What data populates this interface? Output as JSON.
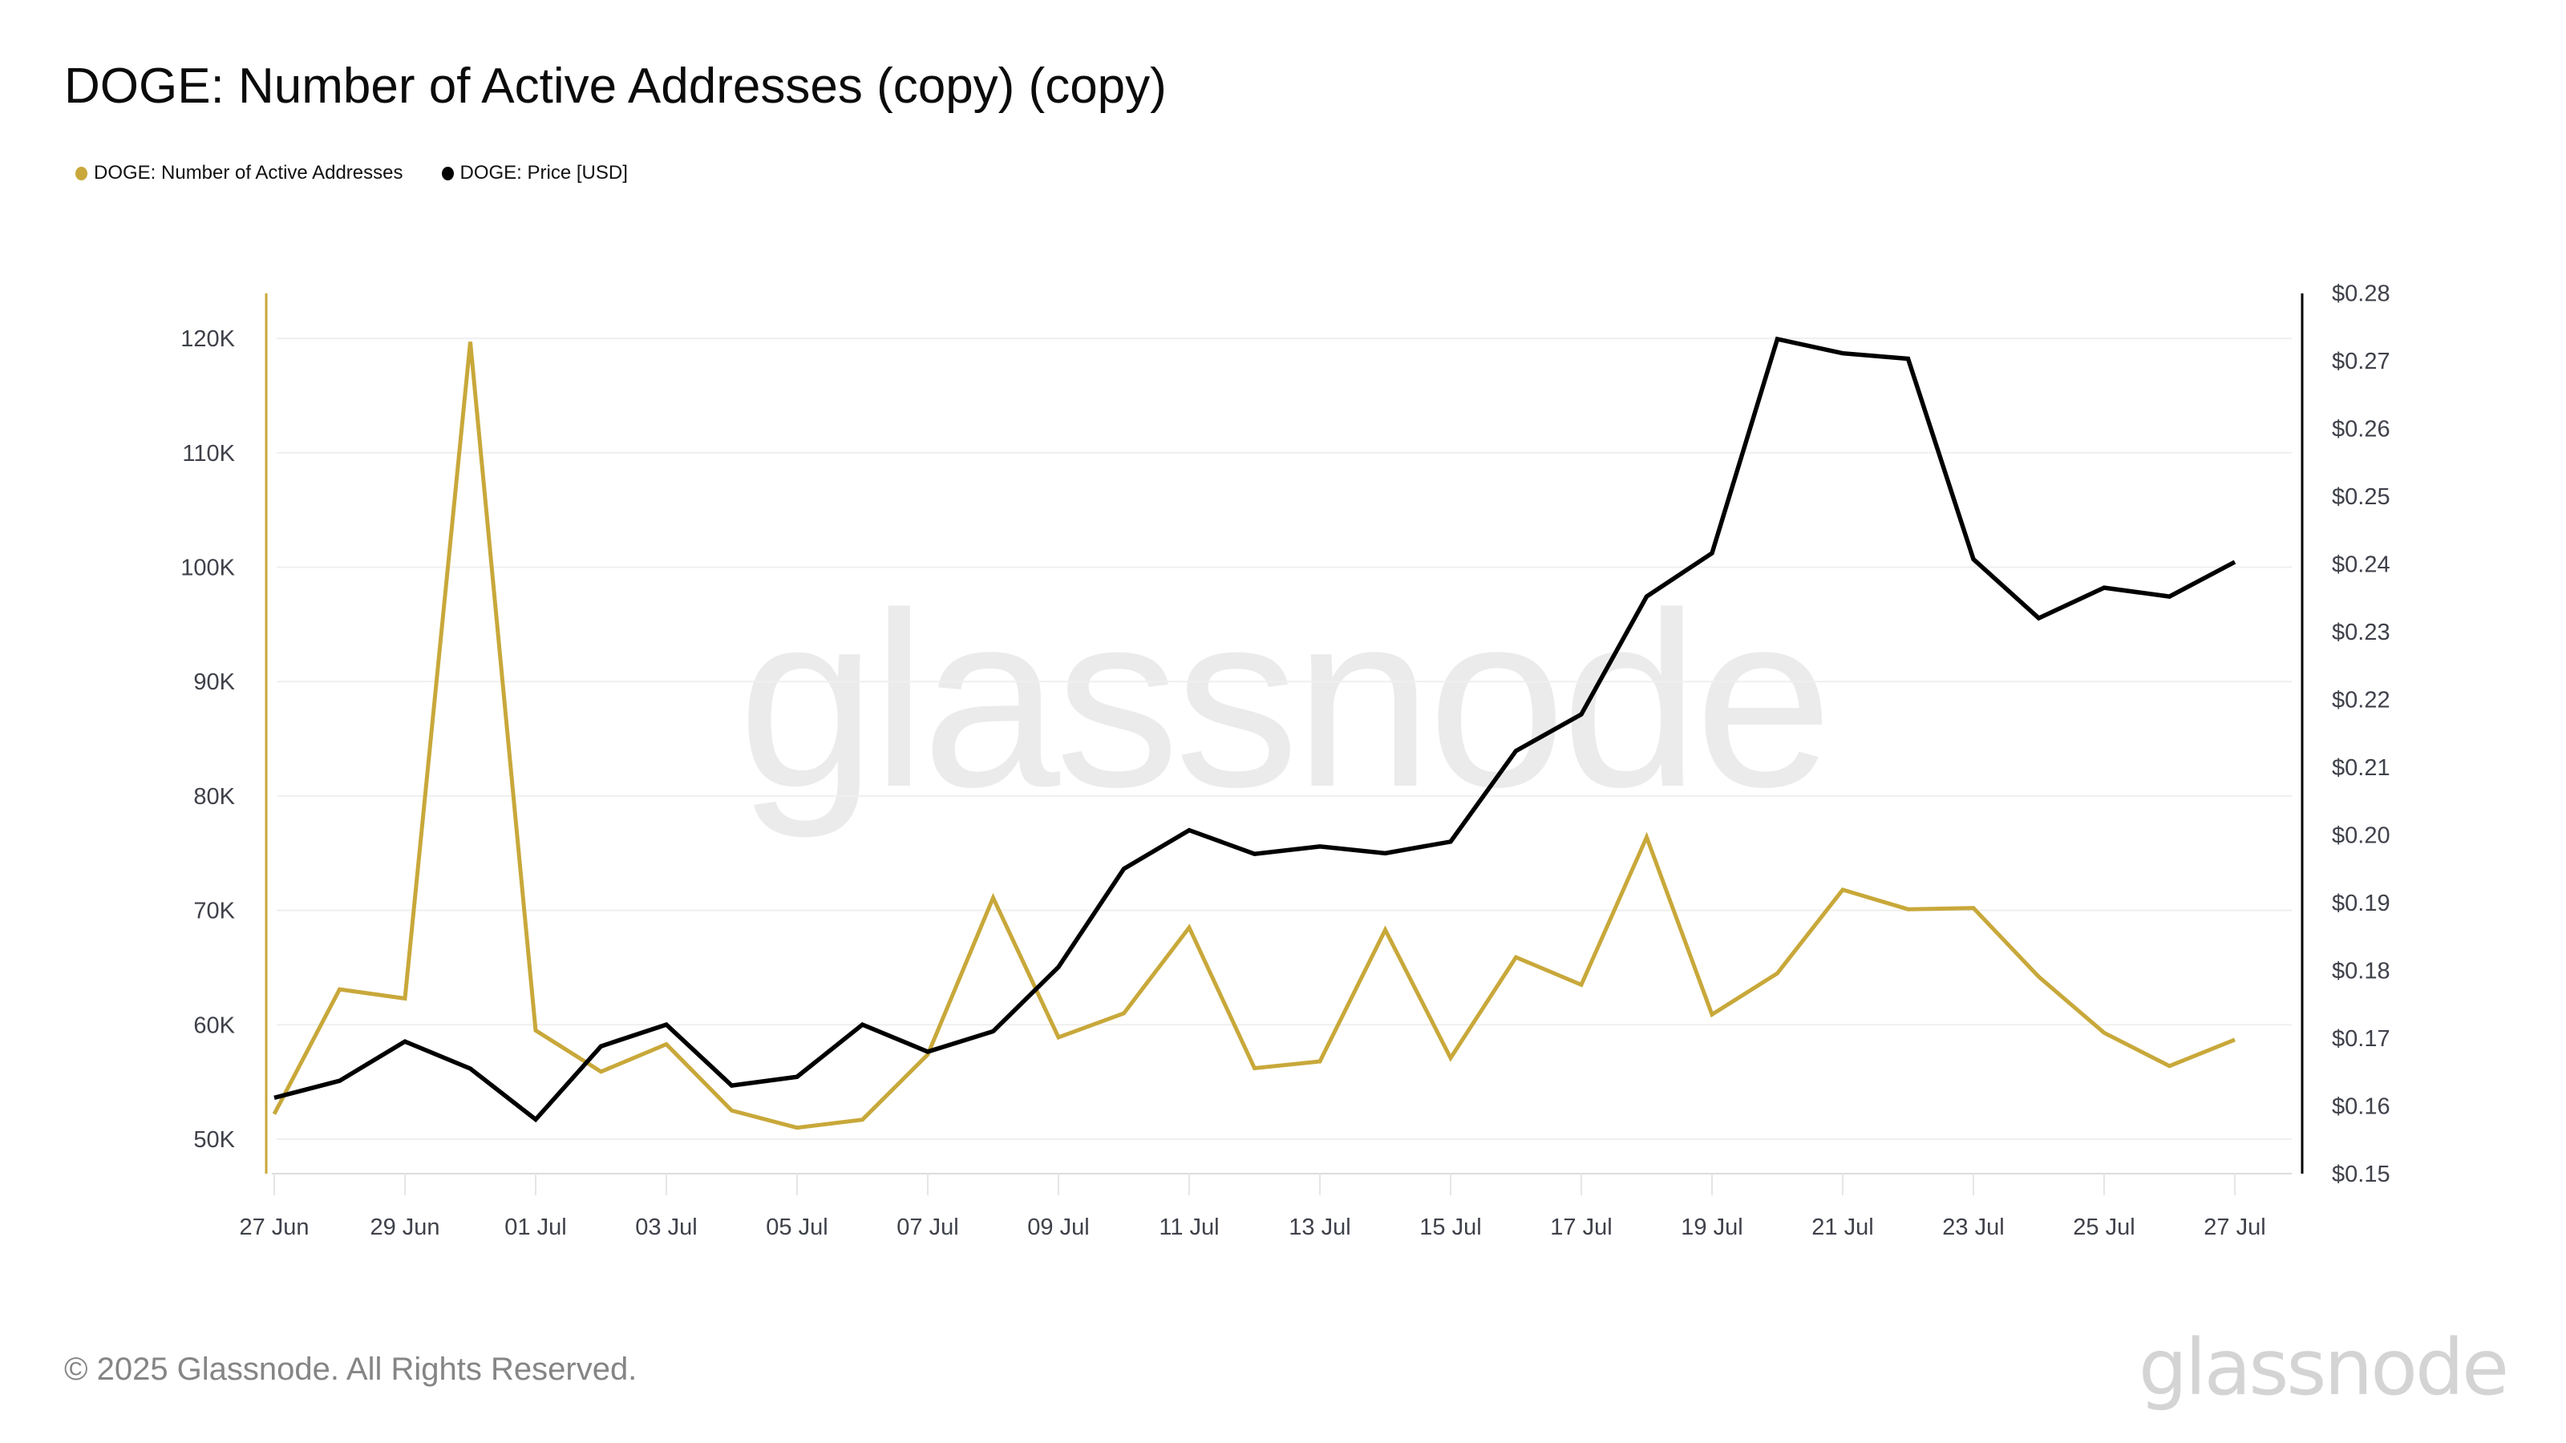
{
  "header": {
    "title": "DOGE: Number of Active Addresses (copy) (copy)"
  },
  "legend": [
    {
      "label": "DOGE: Number of Active Addresses",
      "color": "#c8a83a"
    },
    {
      "label": "DOGE: Price [USD]",
      "color": "#000000"
    }
  ],
  "watermark": "glassnode",
  "footer": {
    "copyright": "© 2025 Glassnode. All Rights Reserved.",
    "logo": "glassnode"
  },
  "colors": {
    "active_addresses": "#c8a83a",
    "price": "#000000",
    "grid": "#efefef",
    "axis_text": "#3f414a",
    "watermark": "#ebebeb"
  },
  "chart_data": {
    "type": "line",
    "title": "DOGE: Number of Active Addresses (copy) (copy)",
    "xlabel": "",
    "ylabel": "",
    "y2label": "",
    "legend_position": "top-left",
    "grid": true,
    "x": [
      "27 Jun",
      "28 Jun",
      "29 Jun",
      "30 Jun",
      "01 Jul",
      "02 Jul",
      "03 Jul",
      "04 Jul",
      "05 Jul",
      "06 Jul",
      "07 Jul",
      "08 Jul",
      "09 Jul",
      "10 Jul",
      "11 Jul",
      "12 Jul",
      "13 Jul",
      "14 Jul",
      "15 Jul",
      "16 Jul",
      "17 Jul",
      "18 Jul",
      "19 Jul",
      "20 Jul",
      "21 Jul",
      "22 Jul",
      "23 Jul",
      "24 Jul",
      "25 Jul",
      "26 Jul",
      "27 Jul"
    ],
    "x_tick_labels": [
      "27 Jun",
      "29 Jun",
      "01 Jul",
      "03 Jul",
      "05 Jul",
      "07 Jul",
      "09 Jul",
      "11 Jul",
      "13 Jul",
      "15 Jul",
      "17 Jul",
      "19 Jul",
      "21 Jul",
      "23 Jul",
      "25 Jul",
      "27 Jul"
    ],
    "series": [
      {
        "name": "DOGE: Number of Active Addresses",
        "axis": "left",
        "color": "#c8a83a",
        "values": [
          52200,
          63100,
          62300,
          119700,
          59500,
          55900,
          58300,
          52500,
          51000,
          51700,
          57400,
          71100,
          58900,
          61000,
          68500,
          56200,
          56800,
          68300,
          57100,
          65900,
          63500,
          76400,
          60900,
          64500,
          71800,
          70100,
          70200,
          64200,
          59300,
          56400,
          58700
        ]
      },
      {
        "name": "DOGE: Price [USD]",
        "axis": "right",
        "color": "#000000",
        "values": [
          0.1612,
          0.1637,
          0.1695,
          0.1655,
          0.158,
          0.1688,
          0.172,
          0.163,
          0.1643,
          0.172,
          0.168,
          0.171,
          0.1805,
          0.195,
          0.2007,
          0.1972,
          0.1983,
          0.1973,
          0.199,
          0.2124,
          0.2178,
          0.2352,
          0.2416,
          0.2732,
          0.2711,
          0.2703,
          0.2407,
          0.232,
          0.2365,
          0.2352,
          0.2403
        ]
      }
    ],
    "y_left": {
      "ylim": [
        47000,
        124000
      ],
      "ticks": [
        50000,
        60000,
        70000,
        80000,
        90000,
        100000,
        110000,
        120000
      ],
      "tick_labels": [
        "50K",
        "60K",
        "70K",
        "80K",
        "90K",
        "100K",
        "110K",
        "120K"
      ]
    },
    "y_right": {
      "ylim": [
        0.15,
        0.28
      ],
      "ticks": [
        0.15,
        0.16,
        0.17,
        0.18,
        0.19,
        0.2,
        0.21,
        0.22,
        0.23,
        0.24,
        0.25,
        0.26,
        0.27,
        0.28
      ],
      "tick_labels": [
        "$0.15",
        "$0.16",
        "$0.17",
        "$0.18",
        "$0.19",
        "$0.20",
        "$0.21",
        "$0.22",
        "$0.23",
        "$0.24",
        "$0.25",
        "$0.26",
        "$0.27",
        "$0.28"
      ]
    }
  }
}
